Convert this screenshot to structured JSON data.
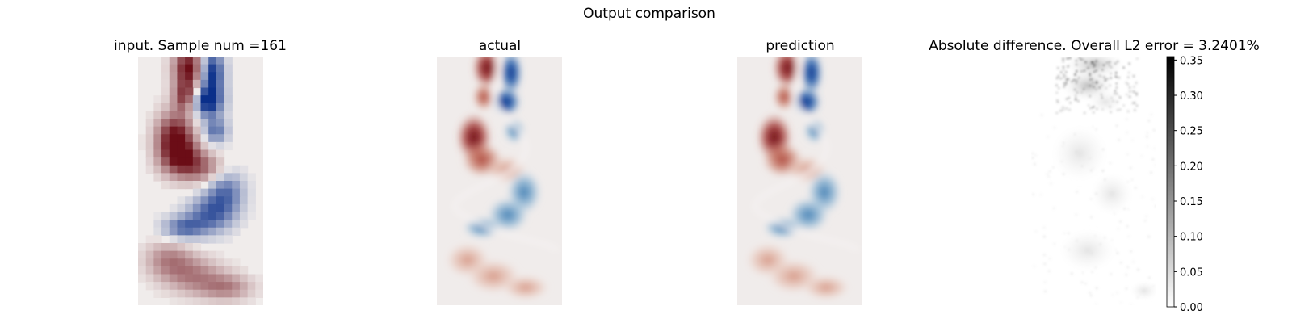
{
  "figure": {
    "suptitle": "Output comparison"
  },
  "chart_data": [
    {
      "type": "heatmap",
      "title": "input. Sample num =161",
      "colormap": "diverging-red-blue",
      "note": "coarse low-resolution vorticity field; red positive, blue negative",
      "axes": "off"
    },
    {
      "type": "heatmap",
      "title": "actual",
      "colormap": "diverging-red-blue",
      "axes": "off"
    },
    {
      "type": "heatmap",
      "title": "prediction",
      "colormap": "diverging-red-blue",
      "axes": "off"
    },
    {
      "type": "heatmap",
      "title": "Absolute difference. Overall L2 error = 3.2401%",
      "colormap": "grayscale (white to black)",
      "axes": "off",
      "colorbar": {
        "min": 0,
        "max": 0.355,
        "ticks": [
          "0.00",
          "0.05",
          "0.10",
          "0.15",
          "0.20",
          "0.25",
          "0.30",
          "0.35"
        ]
      }
    }
  ],
  "colors": {
    "positive": "#6b0d16",
    "negative": "#0a2f8a",
    "neutral": "#f0eceb"
  }
}
